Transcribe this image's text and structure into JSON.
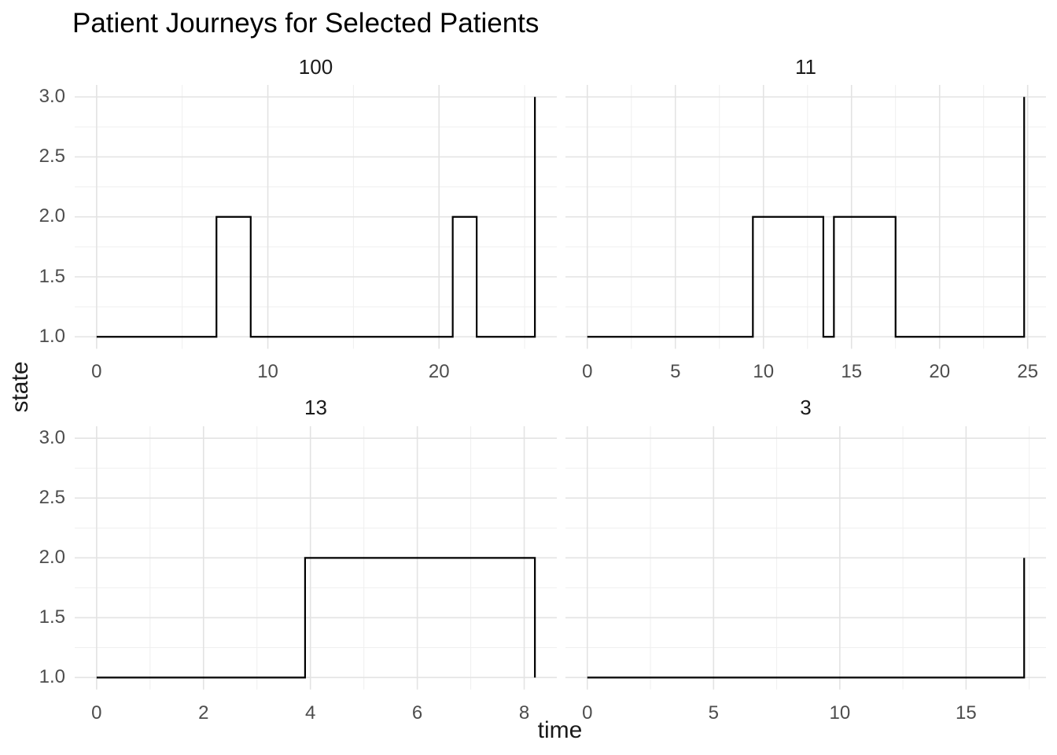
{
  "title": "Patient Journeys for Selected Patients",
  "chart_data": {
    "type": "line",
    "subtype": "step",
    "title": "Patient Journeys for Selected Patients",
    "xlabel": "time",
    "ylabel": "state",
    "legend": "none",
    "grid": "major-and-minor",
    "facet_layout": "2x2",
    "facet_scales": "free_x",
    "ylim": [
      0.9,
      3.1
    ],
    "y_ticks": [
      1.0,
      1.5,
      2.0,
      2.5,
      3.0
    ],
    "y_minor_ticks": [
      1.25,
      1.75,
      2.25,
      2.75
    ],
    "y_tick_labels": [
      "1.0",
      "1.5",
      "2.0",
      "2.5",
      "3.0"
    ],
    "facets": [
      {
        "label": "100",
        "points": [
          [
            0,
            1
          ],
          [
            7,
            2
          ],
          [
            9,
            1
          ],
          [
            20.8,
            2
          ],
          [
            22.2,
            1
          ],
          [
            25.6,
            3
          ]
        ],
        "xmax": 25.6,
        "x_ticks": [
          0,
          10,
          20
        ],
        "x_minor_ticks": [
          5,
          15,
          25
        ]
      },
      {
        "label": "11",
        "points": [
          [
            0,
            1
          ],
          [
            9.4,
            2
          ],
          [
            13.4,
            1
          ],
          [
            14,
            2
          ],
          [
            17.5,
            1
          ],
          [
            24.8,
            3
          ]
        ],
        "xmax": 24.8,
        "x_ticks": [
          0,
          5,
          10,
          15,
          20,
          25
        ],
        "x_minor_ticks": [
          2.5,
          7.5,
          12.5,
          17.5,
          22.5
        ]
      },
      {
        "label": "13",
        "points": [
          [
            0,
            1
          ],
          [
            3.9,
            2
          ],
          [
            8.2,
            1
          ]
        ],
        "xmax": 8.2,
        "x_ticks": [
          0,
          2,
          4,
          6,
          8
        ],
        "x_minor_ticks": [
          1,
          3,
          5,
          7
        ]
      },
      {
        "label": "3",
        "points": [
          [
            0,
            1
          ],
          [
            17.3,
            2
          ]
        ],
        "xmax": 17.3,
        "x_ticks": [
          0,
          5,
          10,
          15
        ],
        "x_minor_ticks": [
          2.5,
          7.5,
          12.5,
          17.5
        ]
      }
    ],
    "colors": {
      "line": "#000000",
      "grid_major": "#e3e3e3",
      "grid_minor": "#efefef",
      "axis_text": "#4d4d4d",
      "title_text": "#000000",
      "strip_text": "#1a1a1a",
      "background": "#ffffff"
    }
  }
}
